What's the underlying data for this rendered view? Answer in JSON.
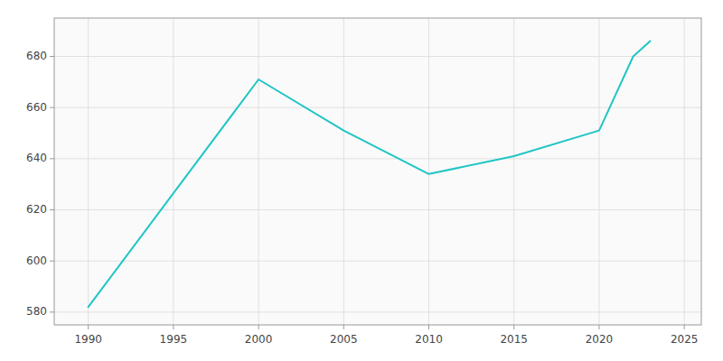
{
  "chart_data": {
    "type": "line",
    "x": [
      1990,
      2000,
      2005,
      2010,
      2015,
      2020,
      2022,
      2023
    ],
    "values": [
      582,
      671,
      651,
      634,
      641,
      651,
      680,
      686
    ],
    "color": "#20c5c5",
    "xlim": [
      1988,
      2026
    ],
    "ylim": [
      575,
      695
    ],
    "xticks": [
      1990,
      1995,
      2000,
      2005,
      2010,
      2015,
      2020,
      2025
    ],
    "yticks": [
      580,
      600,
      620,
      640,
      660,
      680
    ],
    "grid": true
  }
}
